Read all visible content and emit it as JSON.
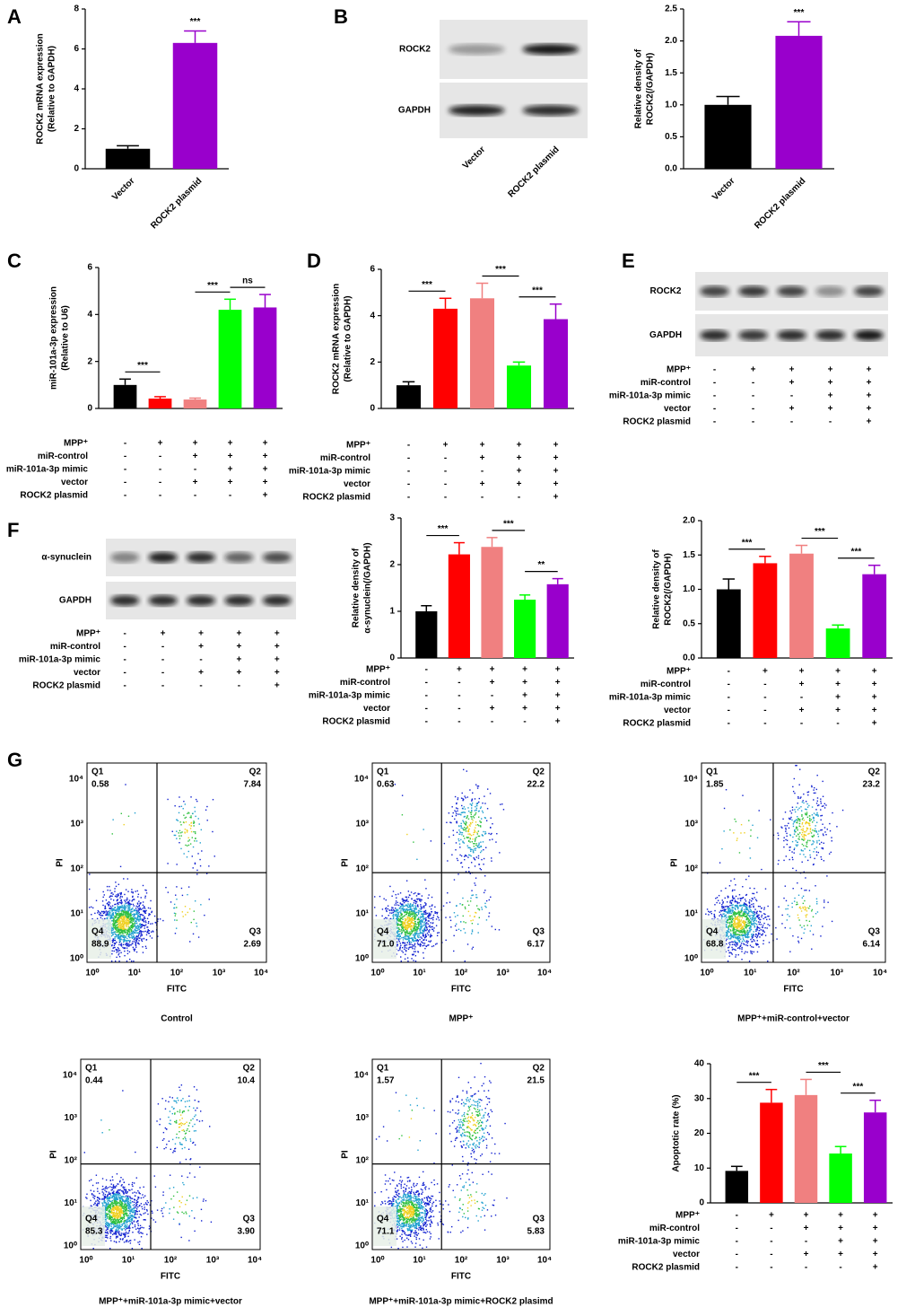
{
  "panel_letters": [
    "A",
    "B",
    "C",
    "D",
    "E",
    "F",
    "G"
  ],
  "chart_data": [
    {
      "type": "bar",
      "ylabel": [
        "ROCK2 mRNA expression",
        "(Relative to GAPDH)"
      ],
      "categories": [
        "Vector",
        "ROCK2 plasmid"
      ],
      "values": [
        1,
        6.3
      ],
      "errors": [
        0.15,
        0.6
      ],
      "colors": [
        "#000000",
        "#9900cc"
      ],
      "ylim": [
        0,
        8
      ],
      "yticks": [
        0,
        2,
        4,
        6,
        8
      ],
      "annotations": [
        {
          "text": "***",
          "over": 1
        }
      ]
    },
    {
      "type": "bar",
      "ylabel": [
        "Relative density of",
        "ROCK2(/GAPDH)"
      ],
      "categories": [
        "Vector",
        "ROCK2 plasmid"
      ],
      "values": [
        1.0,
        2.08
      ],
      "errors": [
        0.13,
        0.22
      ],
      "colors": [
        "#000000",
        "#9900cc"
      ],
      "ylim": [
        0,
        2.5
      ],
      "yticks": [
        {
          "value": 0,
          "label": "0.0"
        },
        0.5,
        {
          "value": 1,
          "label": "1.0"
        },
        1.5,
        {
          "value": 2,
          "label": "2.0"
        },
        2.5
      ],
      "annotations": [
        {
          "text": "***",
          "over": 1
        }
      ]
    },
    {
      "type": "bar",
      "ylabel": [
        "miR-101a-3p expression",
        "(Relative to U6)"
      ],
      "values": [
        1.0,
        0.42,
        0.38,
        4.2,
        4.3
      ],
      "errors": [
        0.25,
        0.08,
        0.06,
        0.45,
        0.55
      ],
      "colors": [
        "#000000",
        "#ff0000",
        "#f08080",
        "#00ff00",
        "#9900cc"
      ],
      "ylim": [
        0,
        6
      ],
      "yticks": [
        0,
        2,
        4,
        6
      ],
      "annotations": [
        {
          "text": "***",
          "between": [
            0,
            1
          ]
        },
        {
          "text": "***",
          "between": [
            2,
            3
          ]
        },
        {
          "text": "ns",
          "between": [
            3,
            4
          ]
        }
      ],
      "treatments": [
        {
          "name": "MPP⁺",
          "signs": [
            "-",
            "+",
            "+",
            "+",
            "+"
          ]
        },
        {
          "name": "miR-control",
          "signs": [
            "-",
            "-",
            "+",
            "+",
            "+"
          ]
        },
        {
          "name": "miR-101a-3p mimic",
          "signs": [
            "-",
            "-",
            "-",
            "+",
            "+"
          ]
        },
        {
          "name": "vector",
          "signs": [
            "-",
            "-",
            "+",
            "+",
            "+"
          ]
        },
        {
          "name": "ROCK2 plasmid",
          "signs": [
            "-",
            "-",
            "-",
            "-",
            "+"
          ]
        }
      ]
    },
    {
      "type": "bar",
      "ylabel": [
        "ROCK2 mRNA expression",
        "(Relative to GAPDH)"
      ],
      "values": [
        1.0,
        4.3,
        4.75,
        1.85,
        3.85
      ],
      "errors": [
        0.15,
        0.45,
        0.65,
        0.15,
        0.65
      ],
      "colors": [
        "#000000",
        "#ff0000",
        "#f08080",
        "#00ff00",
        "#9900cc"
      ],
      "ylim": [
        0,
        6
      ],
      "yticks": [
        0,
        2,
        4,
        6
      ],
      "annotations": [
        {
          "text": "***",
          "between": [
            0,
            1
          ]
        },
        {
          "text": "***",
          "between": [
            2,
            3
          ]
        },
        {
          "text": "***",
          "between": [
            3,
            4
          ]
        }
      ],
      "treatments": [
        {
          "name": "MPP⁺",
          "signs": [
            "-",
            "+",
            "+",
            "+",
            "+"
          ]
        },
        {
          "name": "miR-control",
          "signs": [
            "-",
            "-",
            "+",
            "+",
            "+"
          ]
        },
        {
          "name": "miR-101a-3p mimic",
          "signs": [
            "-",
            "-",
            "-",
            "+",
            "+"
          ]
        },
        {
          "name": "vector",
          "signs": [
            "-",
            "-",
            "+",
            "+",
            "+"
          ]
        },
        {
          "name": "ROCK2 plasmid",
          "signs": [
            "-",
            "-",
            "-",
            "-",
            "+"
          ]
        }
      ]
    },
    {
      "type": "bar",
      "ylabel": [
        "Relative density of",
        "α-synuclein(/GAPDH)"
      ],
      "values": [
        1.0,
        2.22,
        2.38,
        1.25,
        1.58
      ],
      "errors": [
        0.12,
        0.25,
        0.2,
        0.1,
        0.12
      ],
      "colors": [
        "#000000",
        "#ff0000",
        "#f08080",
        "#00ff00",
        "#9900cc"
      ],
      "ylim": [
        0,
        3
      ],
      "yticks": [
        0,
        1,
        2,
        3
      ],
      "annotations": [
        {
          "text": "***",
          "between": [
            0,
            1
          ]
        },
        {
          "text": "***",
          "between": [
            2,
            3
          ]
        },
        {
          "text": "**",
          "between": [
            3,
            4
          ]
        }
      ],
      "treatments": [
        {
          "name": "MPP⁺",
          "signs": [
            "-",
            "+",
            "+",
            "+",
            "+"
          ]
        },
        {
          "name": "miR-control",
          "signs": [
            "-",
            "-",
            "+",
            "+",
            "+"
          ]
        },
        {
          "name": "miR-101a-3p mimic",
          "signs": [
            "-",
            "-",
            "-",
            "+",
            "+"
          ]
        },
        {
          "name": "vector",
          "signs": [
            "-",
            "-",
            "+",
            "+",
            "+"
          ]
        },
        {
          "name": "ROCK2 plasmid",
          "signs": [
            "-",
            "-",
            "-",
            "-",
            "+"
          ]
        }
      ]
    },
    {
      "type": "bar",
      "ylabel": [
        "Relative density of",
        "ROCK2(/GAPDH)"
      ],
      "values": [
        1.0,
        1.38,
        1.52,
        0.43,
        1.22
      ],
      "errors": [
        0.15,
        0.1,
        0.12,
        0.05,
        0.13
      ],
      "colors": [
        "#000000",
        "#ff0000",
        "#f08080",
        "#00ff00",
        "#9900cc"
      ],
      "ylim": [
        0,
        2
      ],
      "yticks": [
        {
          "value": 0,
          "label": "0.0"
        },
        0.5,
        {
          "value": 1,
          "label": "1.0"
        },
        1.5,
        {
          "value": 2,
          "label": "2.0"
        }
      ],
      "annotations": [
        {
          "text": "***",
          "between": [
            0,
            1
          ]
        },
        {
          "text": "***",
          "between": [
            2,
            3
          ]
        },
        {
          "text": "***",
          "between": [
            3,
            4
          ]
        }
      ],
      "treatments": [
        {
          "name": "MPP⁺",
          "signs": [
            "-",
            "+",
            "+",
            "+",
            "+"
          ]
        },
        {
          "name": "miR-control",
          "signs": [
            "-",
            "-",
            "+",
            "+",
            "+"
          ]
        },
        {
          "name": "miR-101a-3p mimic",
          "signs": [
            "-",
            "-",
            "-",
            "+",
            "+"
          ]
        },
        {
          "name": "vector",
          "signs": [
            "-",
            "-",
            "+",
            "+",
            "+"
          ]
        },
        {
          "name": "ROCK2 plasmid",
          "signs": [
            "-",
            "-",
            "-",
            "-",
            "+"
          ]
        }
      ]
    },
    {
      "type": "bar",
      "ylabel": [
        "Apoptotic rate (%)"
      ],
      "values": [
        9.2,
        28.8,
        31,
        14.2,
        26
      ],
      "errors": [
        1.3,
        3.8,
        4.5,
        2,
        3.5
      ],
      "colors": [
        "#000000",
        "#ff0000",
        "#f08080",
        "#00ff00",
        "#9900cc"
      ],
      "ylim": [
        0,
        40
      ],
      "yticks": [
        0,
        10,
        20,
        30,
        40
      ],
      "annotations": [
        {
          "text": "***",
          "between": [
            0,
            1
          ]
        },
        {
          "text": "***",
          "between": [
            2,
            3
          ]
        },
        {
          "text": "***",
          "between": [
            3,
            4
          ]
        }
      ],
      "treatments": [
        {
          "name": "MPP⁺",
          "signs": [
            "-",
            "+",
            "+",
            "+",
            "+"
          ]
        },
        {
          "name": "miR-control",
          "signs": [
            "-",
            "-",
            "+",
            "+",
            "+"
          ]
        },
        {
          "name": "miR-101a-3p mimic",
          "signs": [
            "-",
            "-",
            "-",
            "+",
            "+"
          ]
        },
        {
          "name": "vector",
          "signs": [
            "-",
            "-",
            "+",
            "+",
            "+"
          ]
        },
        {
          "name": "ROCK2 plasmid",
          "signs": [
            "-",
            "-",
            "-",
            "-",
            "+"
          ]
        }
      ]
    }
  ],
  "blots": [
    {
      "rows": [
        "ROCK2",
        "GAPDH"
      ],
      "lanes": [
        "Vector",
        "ROCK2 plasmid"
      ]
    },
    {
      "rows": [
        "ROCK2",
        "GAPDH"
      ],
      "treatments": [
        {
          "name": "MPP⁺",
          "signs": [
            "-",
            "+",
            "+",
            "+",
            "+"
          ]
        },
        {
          "name": "miR-control",
          "signs": [
            "-",
            "-",
            "+",
            "+",
            "+"
          ]
        },
        {
          "name": "miR-101a-3p mimic",
          "signs": [
            "-",
            "-",
            "-",
            "+",
            "+"
          ]
        },
        {
          "name": "vector",
          "signs": [
            "-",
            "-",
            "+",
            "+",
            "+"
          ]
        },
        {
          "name": "ROCK2 plasmid",
          "signs": [
            "-",
            "-",
            "-",
            "-",
            "+"
          ]
        }
      ]
    },
    {
      "rows": [
        "α-synuclein",
        "GAPDH"
      ],
      "treatments": [
        {
          "name": "MPP⁺",
          "signs": [
            "-",
            "+",
            "+",
            "+",
            "+"
          ]
        },
        {
          "name": "miR-control",
          "signs": [
            "-",
            "-",
            "+",
            "+",
            "+"
          ]
        },
        {
          "name": "miR-101a-3p mimic",
          "signs": [
            "-",
            "-",
            "-",
            "+",
            "+"
          ]
        },
        {
          "name": "vector",
          "signs": [
            "-",
            "-",
            "+",
            "+",
            "+"
          ]
        },
        {
          "name": "ROCK2 plasmid",
          "signs": [
            "-",
            "-",
            "-",
            "-",
            "+"
          ]
        }
      ]
    }
  ],
  "flow": {
    "xlabel": "FITC",
    "ylabel": "PI",
    "ticks": [
      "10⁰",
      "10¹",
      "10²",
      "10³",
      "10⁴"
    ],
    "plots": [
      {
        "title": "Control",
        "quadrants": [
          {
            "name": "Q1",
            "value": "0.58"
          },
          {
            "name": "Q2",
            "value": "7.84"
          },
          {
            "name": "Q3",
            "value": "2.69"
          },
          {
            "name": "Q4",
            "value": "88.9"
          }
        ]
      },
      {
        "title": "MPP⁺",
        "quadrants": [
          {
            "name": "Q1",
            "value": "0.63"
          },
          {
            "name": "Q2",
            "value": "22.2"
          },
          {
            "name": "Q3",
            "value": "6.17"
          },
          {
            "name": "Q4",
            "value": "71.0"
          }
        ]
      },
      {
        "title": "MPP⁺+miR-control+vector",
        "quadrants": [
          {
            "name": "Q1",
            "value": "1.85"
          },
          {
            "name": "Q2",
            "value": "23.2"
          },
          {
            "name": "Q3",
            "value": "6.14"
          },
          {
            "name": "Q4",
            "value": "68.8"
          }
        ]
      },
      {
        "title": "MPP⁺+miR-101a-3p mimic+vector",
        "quadrants": [
          {
            "name": "Q1",
            "value": "0.44"
          },
          {
            "name": "Q2",
            "value": "10.4"
          },
          {
            "name": "Q3",
            "value": "3.90"
          },
          {
            "name": "Q4",
            "value": "85.3"
          }
        ]
      },
      {
        "title": "MPP⁺+miR-101a-3p mimic+ROCK2 plasimd",
        "quadrants": [
          {
            "name": "Q1",
            "value": "1.57"
          },
          {
            "name": "Q2",
            "value": "21.5"
          },
          {
            "name": "Q3",
            "value": "5.83"
          },
          {
            "name": "Q4",
            "value": "71.1"
          }
        ]
      }
    ]
  }
}
